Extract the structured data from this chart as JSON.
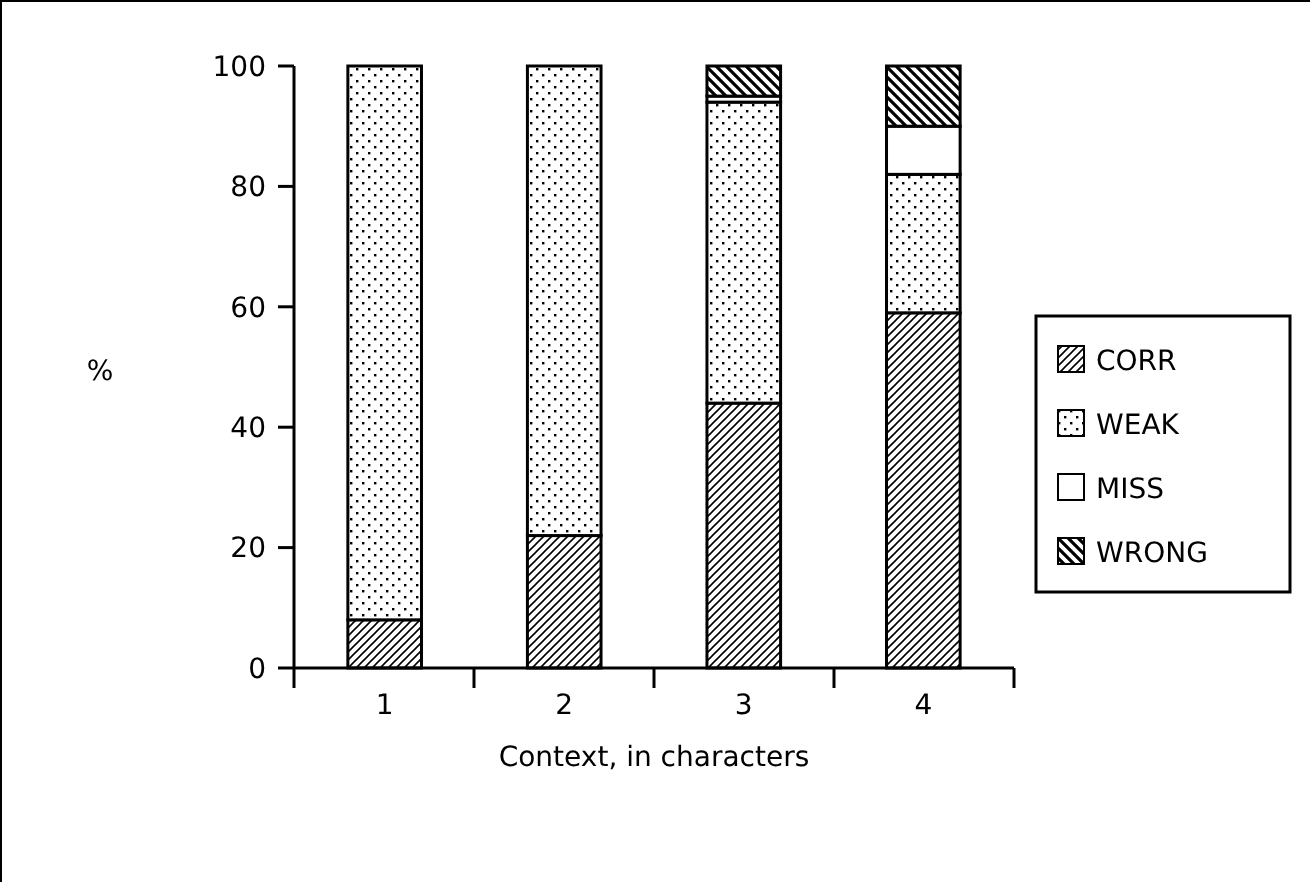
{
  "chart_data": {
    "type": "bar",
    "stacked": true,
    "xlabel": "Context,  in characters",
    "ylabel": "%",
    "categories": [
      "1",
      "2",
      "3",
      "4"
    ],
    "series": [
      {
        "name": "CORR",
        "color": "#000000",
        "values": [
          8,
          22,
          44,
          59
        ]
      },
      {
        "name": "WEAK",
        "color": "#000000",
        "values": [
          92,
          78,
          50,
          23
        ]
      },
      {
        "name": "MISS",
        "color": "#ffffff",
        "values": [
          0,
          0,
          1,
          8
        ]
      },
      {
        "name": "WRONG",
        "color": "#000000",
        "values": [
          0,
          0,
          5,
          10
        ]
      }
    ],
    "ylim": [
      0,
      100
    ],
    "yticks": [
      0,
      20,
      40,
      60,
      80,
      100
    ],
    "grid": false,
    "legend": "right"
  }
}
